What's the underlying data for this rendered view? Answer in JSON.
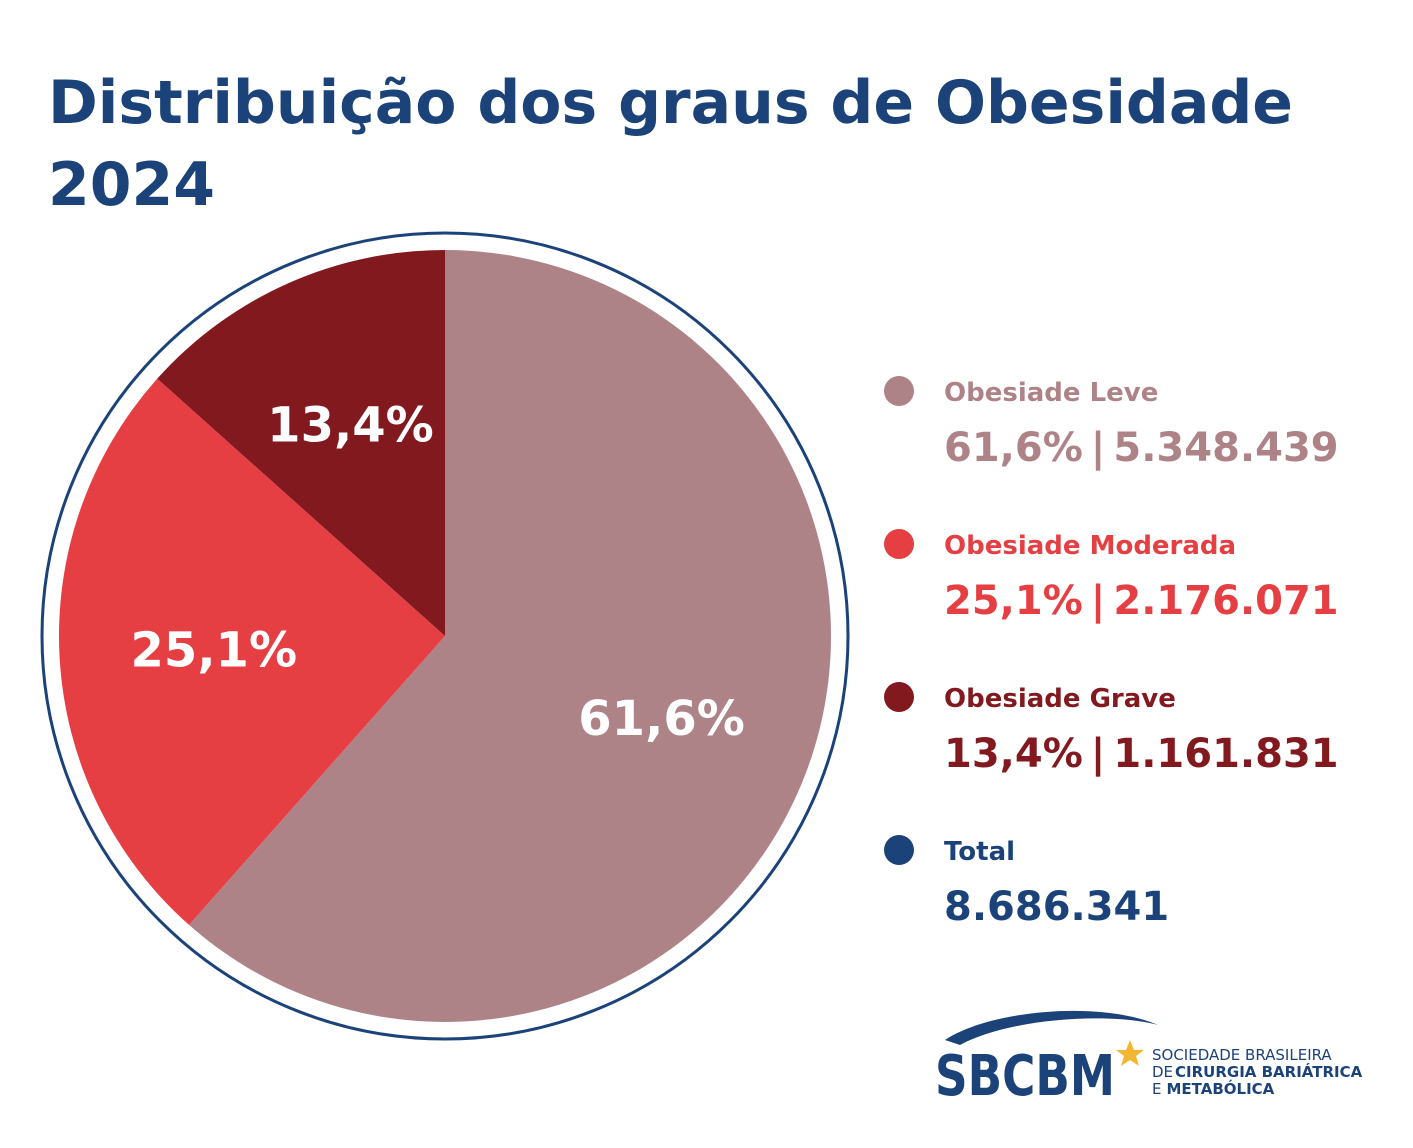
{
  "chart_data": {
    "type": "pie",
    "title": "Distribuição dos graus  de Obesidade",
    "subtitle": "2024",
    "categories": [
      "Obesiade Leve",
      "Obesiade Moderada",
      "Obesiade Grave"
    ],
    "values": [
      61.6,
      25.1,
      13.4
    ],
    "value_labels": [
      "61,6%",
      "25,1%",
      "13,4%"
    ],
    "colors": [
      "#ae8388",
      "#e53e43",
      "#82191f"
    ],
    "counts": [
      5348439,
      2176071,
      1161831
    ],
    "count_labels": [
      "5.348.439",
      "2.176.071",
      "1.161.831"
    ],
    "separator": "|",
    "total_label": "Total",
    "total": 8686341,
    "total_value_label": "8.686.341",
    "total_color": "#1b4379"
  },
  "logo": {
    "acronym": "SBCBM",
    "line1": "SOCIEDADE BRASILEIRA",
    "line2_prefix": "DE",
    "line2": "CIRURGIA BARIÁTRICA",
    "line3_prefix": "E",
    "line3": "METABÓLICA"
  }
}
